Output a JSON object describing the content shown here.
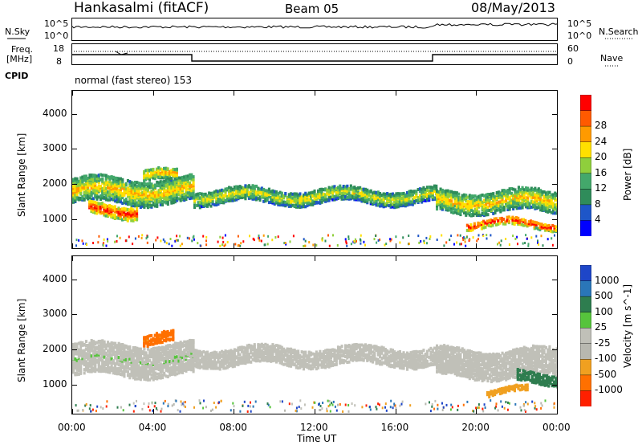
{
  "header": {
    "station": "Hankasalmi (fitACF)",
    "beam": "Beam 05",
    "date": "08/May/2013"
  },
  "top_panels": {
    "nsky_label": "N.Sky",
    "nsky_ticks": [
      "10^5",
      "10^0"
    ],
    "nsearch_label": "N.Search",
    "freq_label": "Freq.",
    "freq_unit": "[MHz]",
    "freq_ticks": [
      "18",
      "8"
    ],
    "nave_ticks": [
      "60",
      "0"
    ],
    "nave_label": "Nave",
    "cpid_label": "CPID",
    "cpid_text": "normal (fast stereo) 153"
  },
  "colors": {
    "power_scale": [
      "#0000ff",
      "#1e56c8",
      "#2f8c5a",
      "#43a86b",
      "#8fcf3c",
      "#ffe000",
      "#ff9a00",
      "#ff5a00",
      "#ff0000"
    ],
    "velocity_scale": [
      "#1e46c8",
      "#2a76b8",
      "#2e7d4f",
      "#56c43c",
      "#c0c0b8",
      "#b8b8b0",
      "#f0a020",
      "#ff7000",
      "#ff2000"
    ]
  },
  "chart_data": [
    {
      "type": "heatmap",
      "name": "power",
      "ylabel": "Slant Range [km]",
      "xlabel": "",
      "x_ticks": [
        "00:00",
        "04:00",
        "08:00",
        "12:00",
        "16:00",
        "20:00",
        "00:00"
      ],
      "xlim_hours": [
        0,
        24
      ],
      "y_ticks": [
        1000,
        2000,
        3000,
        4000
      ],
      "ylim": [
        180,
        4650
      ],
      "colorbar_label": "Power [dB]",
      "colorbar_ticks": [
        4,
        8,
        12,
        16,
        20,
        24,
        28
      ],
      "colorbar_range": [
        0,
        32
      ],
      "bands": [
        {
          "t0": 0,
          "t1": 6,
          "center": 1800,
          "width": 700,
          "level": 22
        },
        {
          "t0": 0.8,
          "t1": 3.2,
          "center": 1250,
          "width": 350,
          "level": 30
        },
        {
          "t0": 3.5,
          "t1": 5.2,
          "center": 2200,
          "width": 300,
          "level": 24
        },
        {
          "t0": 6,
          "t1": 18,
          "center": 1650,
          "width": 400,
          "level": 20
        },
        {
          "t0": 18,
          "t1": 24,
          "center": 1500,
          "width": 600,
          "level": 22
        },
        {
          "t0": 19.5,
          "t1": 24,
          "center": 850,
          "width": 200,
          "level": 30
        }
      ]
    },
    {
      "type": "heatmap",
      "name": "velocity",
      "ylabel": "Slant Range [km]",
      "xlabel": "Time UT",
      "x_ticks": [
        "00:00",
        "04:00",
        "08:00",
        "12:00",
        "16:00",
        "20:00",
        "00:00"
      ],
      "xlim_hours": [
        0,
        24
      ],
      "y_ticks": [
        1000,
        2000,
        3000,
        4000
      ],
      "ylim": [
        180,
        4650
      ],
      "colorbar_label": "Velocity [m s^-1]",
      "colorbar_ticks": [
        "1000",
        "500",
        "100",
        "25",
        "-25",
        "-100",
        "-500",
        "-1000"
      ],
      "bands": [
        {
          "t0": 0,
          "t1": 6,
          "center": 1700,
          "width": 900,
          "level": 25
        },
        {
          "t0": 3.5,
          "t1": 5,
          "center": 2300,
          "width": 300,
          "level": -500
        },
        {
          "t0": 6,
          "t1": 18,
          "center": 1800,
          "width": 500,
          "level": 0
        },
        {
          "t0": 18,
          "t1": 24,
          "center": 1600,
          "width": 800,
          "level": 0
        },
        {
          "t0": 20.5,
          "t1": 22.5,
          "center": 800,
          "width": 150,
          "level": -300
        },
        {
          "t0": 22,
          "t1": 24,
          "center": 1200,
          "width": 300,
          "level": 300
        }
      ]
    }
  ]
}
